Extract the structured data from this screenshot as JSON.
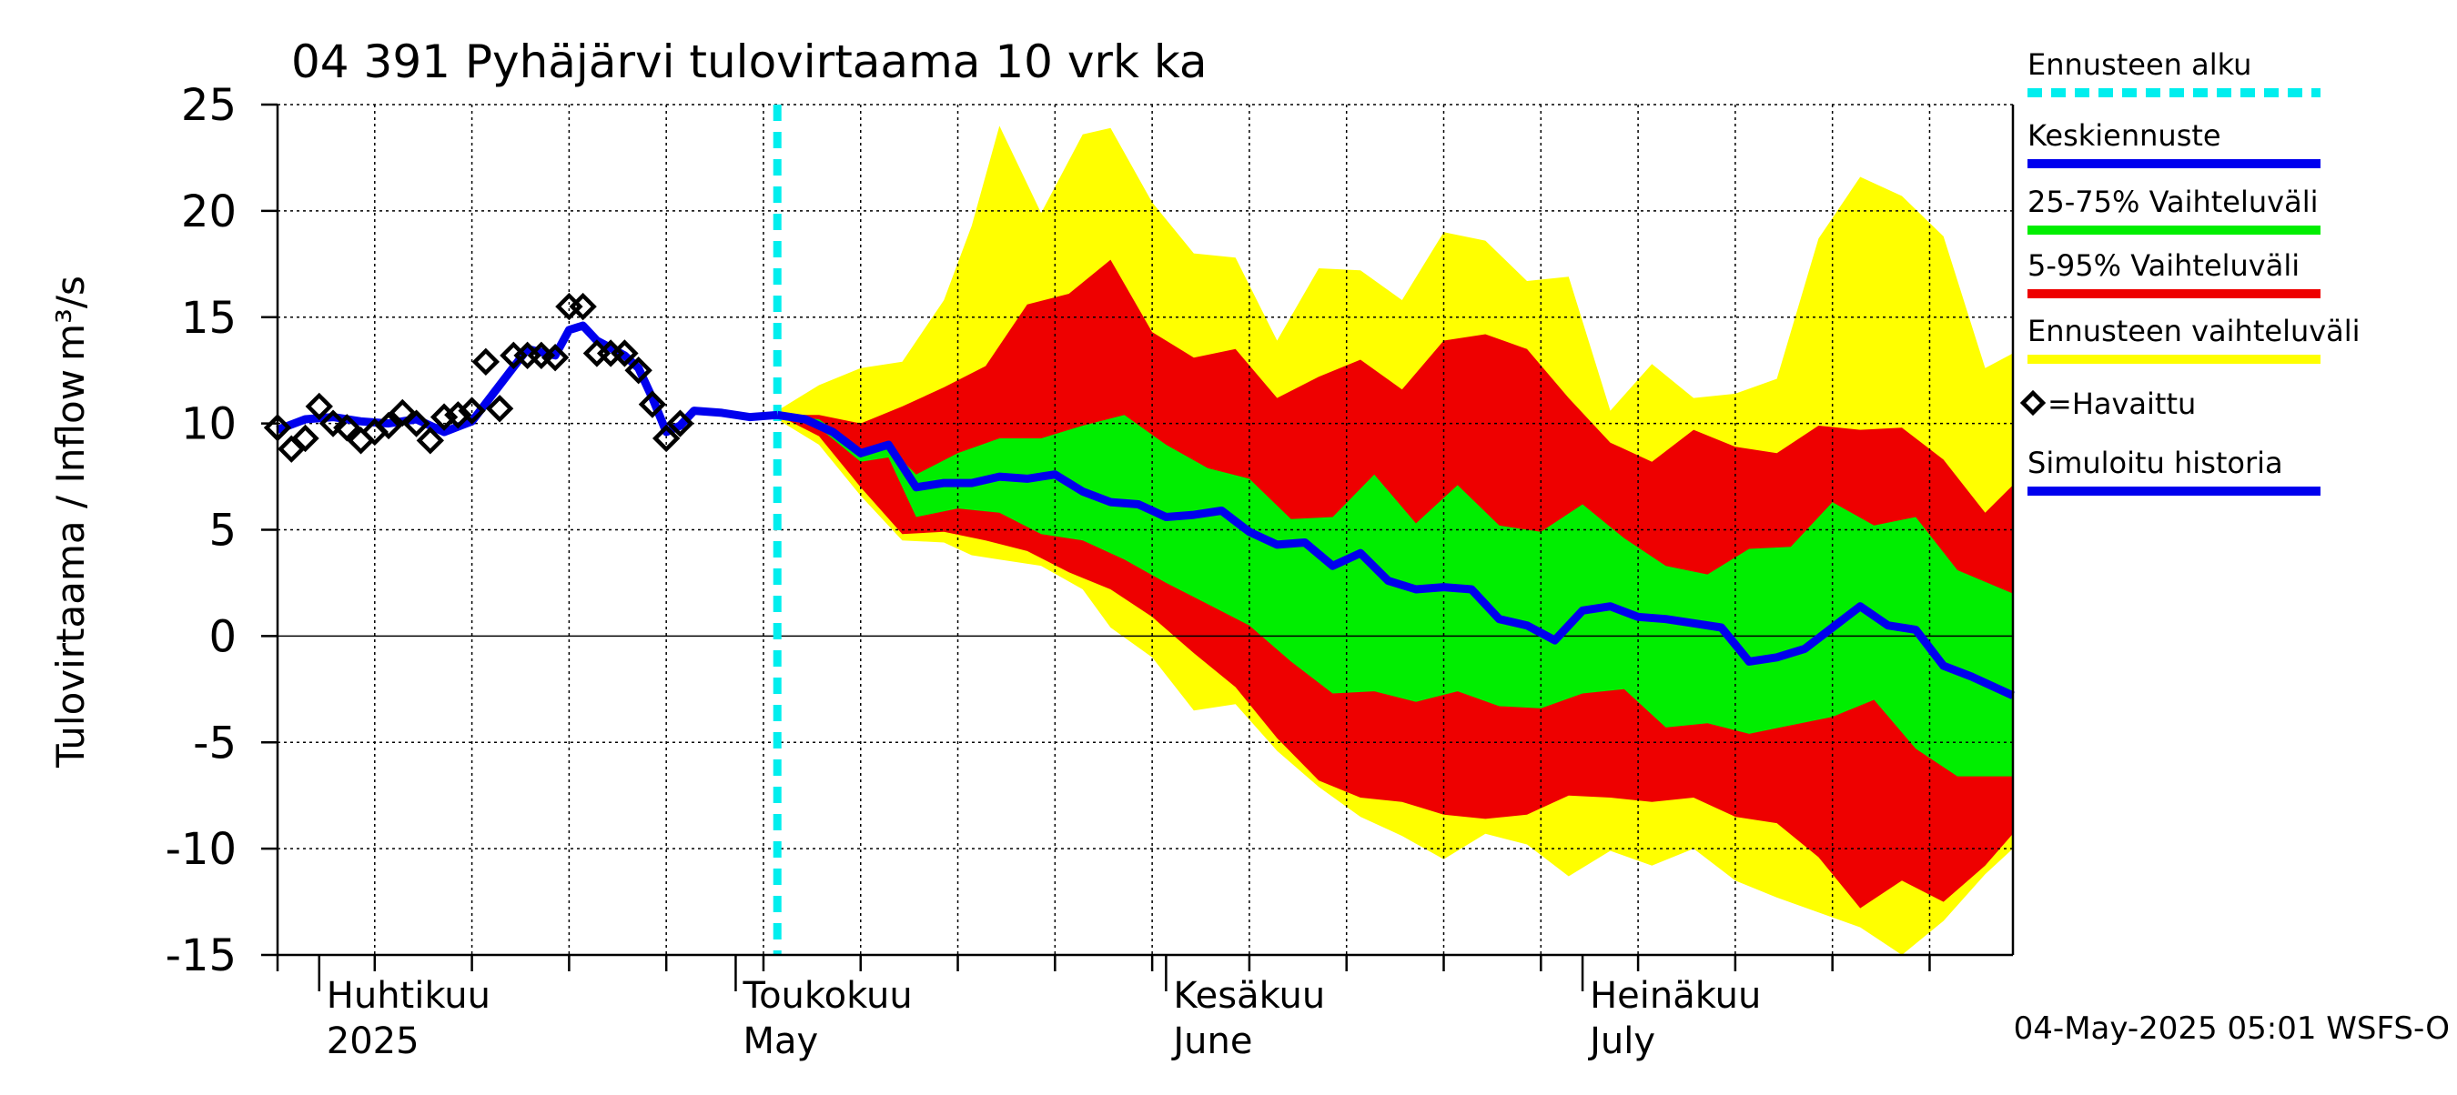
{
  "chart_data": {
    "type": "area",
    "title": "04 391 Pyhäjärvi tulovirtaama 10 vrk ka",
    "ylabel_fi": "Tulovirtaama / Inflow",
    "ylabel_unit": "m³/s",
    "ylim": [
      -15,
      25
    ],
    "yticks": [
      -15,
      -10,
      -5,
      0,
      5,
      10,
      15,
      20,
      25
    ],
    "x_start": "2025-03-29",
    "x_end": "2025-08-01",
    "forecast_start": "2025-05-04",
    "month_labels": [
      {
        "date": "2025-04-01",
        "fi": "Huhtikuu",
        "en": "2025"
      },
      {
        "date": "2025-05-01",
        "fi": "Toukokuu",
        "en": "May"
      },
      {
        "date": "2025-06-01",
        "fi": "Kesäkuu",
        "en": "June"
      },
      {
        "date": "2025-07-01",
        "fi": "Heinäkuu",
        "en": "July"
      }
    ],
    "legend": [
      {
        "label": "Ennusteen alku",
        "color": "#00eeee",
        "style": "dashed"
      },
      {
        "label": "Keskiennuste",
        "color": "#0000ee",
        "style": "line"
      },
      {
        "label": "25-75% Vaihteluväli",
        "color": "#00ee00",
        "style": "line"
      },
      {
        "label": "5-95% Vaihteluväli",
        "color": "#ee0000",
        "style": "line"
      },
      {
        "label": "Ennusteen vaihteluväli",
        "color": "#ffff00",
        "style": "line"
      },
      {
        "label": "=Havaittu",
        "color": "#000000",
        "style": "marker"
      },
      {
        "label": "Simuloitu historia",
        "color": "#0000ee",
        "style": "line"
      }
    ],
    "footer": "04-May-2025 05:01 WSFS-O",
    "colors": {
      "full_band": "#ffff00",
      "p5_95_band": "#ee0000",
      "p25_75_band": "#00ee00",
      "median": "#0000ee",
      "forecast_start": "#00eeee",
      "observed": "#000000"
    },
    "observed": [
      [
        "2025-03-29",
        9.8
      ],
      [
        "2025-03-30",
        8.8
      ],
      [
        "2025-03-31",
        9.3
      ],
      [
        "2025-04-01",
        10.8
      ],
      [
        "2025-04-02",
        10.0
      ],
      [
        "2025-04-03",
        9.8
      ],
      [
        "2025-04-04",
        9.2
      ],
      [
        "2025-04-05",
        9.6
      ],
      [
        "2025-04-06",
        9.9
      ],
      [
        "2025-04-07",
        10.5
      ],
      [
        "2025-04-08",
        10.0
      ],
      [
        "2025-04-09",
        9.2
      ],
      [
        "2025-04-10",
        10.3
      ],
      [
        "2025-04-11",
        10.4
      ],
      [
        "2025-04-12",
        10.6
      ],
      [
        "2025-04-13",
        12.9
      ],
      [
        "2025-04-14",
        10.7
      ],
      [
        "2025-04-15",
        13.2
      ],
      [
        "2025-04-16",
        13.2
      ],
      [
        "2025-04-17",
        13.2
      ],
      [
        "2025-04-18",
        13.1
      ],
      [
        "2025-04-19",
        15.5
      ],
      [
        "2025-04-20",
        15.5
      ],
      [
        "2025-04-21",
        13.3
      ],
      [
        "2025-04-22",
        13.3
      ],
      [
        "2025-04-23",
        13.3
      ],
      [
        "2025-04-24",
        12.5
      ],
      [
        "2025-04-25",
        10.9
      ],
      [
        "2025-04-26",
        9.3
      ],
      [
        "2025-04-27",
        10.0
      ]
    ],
    "simulated_history": [
      [
        "2025-03-29",
        9.7
      ],
      [
        "2025-03-31",
        10.2
      ],
      [
        "2025-04-02",
        10.3
      ],
      [
        "2025-04-04",
        10.1
      ],
      [
        "2025-04-06",
        10.0
      ],
      [
        "2025-04-08",
        10.2
      ],
      [
        "2025-04-10",
        9.6
      ],
      [
        "2025-04-12",
        10.1
      ],
      [
        "2025-04-14",
        11.8
      ],
      [
        "2025-04-16",
        13.5
      ],
      [
        "2025-04-18",
        13.2
      ],
      [
        "2025-04-19",
        14.4
      ],
      [
        "2025-04-20",
        14.6
      ],
      [
        "2025-04-21",
        13.9
      ],
      [
        "2025-04-23",
        13.2
      ],
      [
        "2025-04-24",
        12.6
      ],
      [
        "2025-04-25",
        11.2
      ],
      [
        "2025-04-26",
        9.6
      ],
      [
        "2025-04-27",
        9.9
      ],
      [
        "2025-04-28",
        10.6
      ],
      [
        "2025-04-30",
        10.5
      ],
      [
        "2025-05-02",
        10.3
      ],
      [
        "2025-05-04",
        10.4
      ]
    ],
    "median": [
      [
        "2025-05-04",
        10.4
      ],
      [
        "2025-05-06",
        10.2
      ],
      [
        "2025-05-08",
        9.6
      ],
      [
        "2025-05-10",
        8.6
      ],
      [
        "2025-05-12",
        9.0
      ],
      [
        "2025-05-14",
        7.0
      ],
      [
        "2025-05-16",
        7.2
      ],
      [
        "2025-05-18",
        7.2
      ],
      [
        "2025-05-20",
        7.5
      ],
      [
        "2025-05-22",
        7.4
      ],
      [
        "2025-05-24",
        7.6
      ],
      [
        "2025-05-26",
        6.8
      ],
      [
        "2025-05-28",
        6.3
      ],
      [
        "2025-05-30",
        6.2
      ],
      [
        "2025-06-01",
        5.6
      ],
      [
        "2025-06-03",
        5.7
      ],
      [
        "2025-06-05",
        5.9
      ],
      [
        "2025-06-07",
        4.9
      ],
      [
        "2025-06-09",
        4.3
      ],
      [
        "2025-06-11",
        4.4
      ],
      [
        "2025-06-13",
        3.3
      ],
      [
        "2025-06-15",
        3.9
      ],
      [
        "2025-06-17",
        2.6
      ],
      [
        "2025-06-19",
        2.2
      ],
      [
        "2025-06-21",
        2.3
      ],
      [
        "2025-06-23",
        2.2
      ],
      [
        "2025-06-25",
        0.8
      ],
      [
        "2025-06-27",
        0.5
      ],
      [
        "2025-06-29",
        -0.2
      ],
      [
        "2025-07-01",
        1.2
      ],
      [
        "2025-07-03",
        1.4
      ],
      [
        "2025-07-05",
        0.9
      ],
      [
        "2025-07-07",
        0.8
      ],
      [
        "2025-07-09",
        0.6
      ],
      [
        "2025-07-11",
        0.4
      ],
      [
        "2025-07-13",
        -1.2
      ],
      [
        "2025-07-15",
        -1.0
      ],
      [
        "2025-07-17",
        -0.6
      ],
      [
        "2025-07-19",
        0.4
      ],
      [
        "2025-07-21",
        1.4
      ],
      [
        "2025-07-23",
        0.5
      ],
      [
        "2025-07-25",
        0.3
      ],
      [
        "2025-07-27",
        -1.4
      ],
      [
        "2025-07-29",
        -1.9
      ],
      [
        "2025-08-01",
        -2.8
      ]
    ],
    "band_25_75": [
      [
        "2025-05-04",
        10.4,
        10.4
      ],
      [
        "2025-05-07",
        10.2,
        9.8
      ],
      [
        "2025-05-10",
        8.8,
        8.2
      ],
      [
        "2025-05-12",
        8.9,
        8.4
      ],
      [
        "2025-05-14",
        7.6,
        5.6
      ],
      [
        "2025-05-17",
        8.6,
        6.0
      ],
      [
        "2025-05-20",
        9.3,
        5.8
      ],
      [
        "2025-05-23",
        9.3,
        4.8
      ],
      [
        "2025-05-26",
        9.9,
        4.5
      ],
      [
        "2025-05-29",
        10.4,
        3.6
      ],
      [
        "2025-06-01",
        9.0,
        2.5
      ],
      [
        "2025-06-04",
        7.9,
        1.5
      ],
      [
        "2025-06-07",
        7.4,
        0.5
      ],
      [
        "2025-06-10",
        5.5,
        -1.2
      ],
      [
        "2025-06-13",
        5.6,
        -2.7
      ],
      [
        "2025-06-16",
        7.6,
        -2.6
      ],
      [
        "2025-06-19",
        5.3,
        -3.1
      ],
      [
        "2025-06-22",
        7.1,
        -2.6
      ],
      [
        "2025-06-25",
        5.2,
        -3.3
      ],
      [
        "2025-06-28",
        4.9,
        -3.4
      ],
      [
        "2025-07-01",
        6.2,
        -2.7
      ],
      [
        "2025-07-04",
        4.6,
        -2.5
      ],
      [
        "2025-07-07",
        3.3,
        -4.3
      ],
      [
        "2025-07-10",
        2.9,
        -4.1
      ],
      [
        "2025-07-13",
        4.1,
        -4.6
      ],
      [
        "2025-07-16",
        4.2,
        -4.2
      ],
      [
        "2025-07-19",
        6.3,
        -3.8
      ],
      [
        "2025-07-22",
        5.2,
        -3.0
      ],
      [
        "2025-07-25",
        5.6,
        -5.3
      ],
      [
        "2025-07-28",
        3.1,
        -6.6
      ],
      [
        "2025-08-01",
        2.0,
        -6.6
      ]
    ],
    "band_5_95": [
      [
        "2025-05-04",
        10.4,
        10.4
      ],
      [
        "2025-05-07",
        10.4,
        9.4
      ],
      [
        "2025-05-10",
        10.0,
        7.0
      ],
      [
        "2025-05-13",
        10.8,
        4.8
      ],
      [
        "2025-05-16",
        11.7,
        4.9
      ],
      [
        "2025-05-19",
        12.7,
        4.5
      ],
      [
        "2025-05-22",
        15.6,
        4.0
      ],
      [
        "2025-05-25",
        16.1,
        3.0
      ],
      [
        "2025-05-28",
        17.7,
        2.2
      ],
      [
        "2025-05-31",
        14.3,
        0.9
      ],
      [
        "2025-06-03",
        13.1,
        -0.8
      ],
      [
        "2025-06-06",
        13.5,
        -2.4
      ],
      [
        "2025-06-09",
        11.2,
        -4.8
      ],
      [
        "2025-06-12",
        12.2,
        -6.8
      ],
      [
        "2025-06-15",
        13.0,
        -7.6
      ],
      [
        "2025-06-18",
        11.6,
        -7.8
      ],
      [
        "2025-06-21",
        13.9,
        -8.4
      ],
      [
        "2025-06-24",
        14.2,
        -8.6
      ],
      [
        "2025-06-27",
        13.5,
        -8.4
      ],
      [
        "2025-06-30",
        11.2,
        -7.5
      ],
      [
        "2025-07-03",
        9.1,
        -7.6
      ],
      [
        "2025-07-06",
        8.2,
        -7.8
      ],
      [
        "2025-07-09",
        9.7,
        -7.6
      ],
      [
        "2025-07-12",
        8.9,
        -8.5
      ],
      [
        "2025-07-15",
        8.6,
        -8.8
      ],
      [
        "2025-07-18",
        9.9,
        -10.4
      ],
      [
        "2025-07-21",
        9.7,
        -12.8
      ],
      [
        "2025-07-24",
        9.8,
        -11.5
      ],
      [
        "2025-07-27",
        8.3,
        -12.5
      ],
      [
        "2025-07-30",
        5.8,
        -10.8
      ],
      [
        "2025-08-01",
        7.1,
        -9.3
      ]
    ],
    "band_full": [
      [
        "2025-05-04",
        10.6,
        10.2
      ],
      [
        "2025-05-07",
        11.8,
        9.0
      ],
      [
        "2025-05-10",
        12.6,
        6.6
      ],
      [
        "2025-05-13",
        12.9,
        4.5
      ],
      [
        "2025-05-16",
        15.8,
        4.4
      ],
      [
        "2025-05-18",
        19.3,
        3.8
      ],
      [
        "2025-05-20",
        24.0,
        3.6
      ],
      [
        "2025-05-23",
        19.9,
        3.3
      ],
      [
        "2025-05-26",
        23.6,
        2.2
      ],
      [
        "2025-05-28",
        23.9,
        0.4
      ],
      [
        "2025-05-31",
        20.4,
        -1.0
      ],
      [
        "2025-06-03",
        18.0,
        -3.5
      ],
      [
        "2025-06-06",
        17.8,
        -3.2
      ],
      [
        "2025-06-09",
        13.9,
        -5.4
      ],
      [
        "2025-06-12",
        17.3,
        -7.1
      ],
      [
        "2025-06-15",
        17.2,
        -8.5
      ],
      [
        "2025-06-18",
        15.8,
        -9.4
      ],
      [
        "2025-06-21",
        19.0,
        -10.5
      ],
      [
        "2025-06-24",
        18.6,
        -9.3
      ],
      [
        "2025-06-27",
        16.7,
        -9.8
      ],
      [
        "2025-06-30",
        16.9,
        -11.3
      ],
      [
        "2025-07-03",
        10.6,
        -10.1
      ],
      [
        "2025-07-06",
        12.8,
        -10.8
      ],
      [
        "2025-07-09",
        11.2,
        -10.0
      ],
      [
        "2025-07-12",
        11.4,
        -11.5
      ],
      [
        "2025-07-15",
        12.1,
        -12.3
      ],
      [
        "2025-07-18",
        18.7,
        -13.0
      ],
      [
        "2025-07-21",
        21.6,
        -13.7
      ],
      [
        "2025-07-24",
        20.7,
        -15.0
      ],
      [
        "2025-07-27",
        18.8,
        -13.4
      ],
      [
        "2025-07-30",
        12.6,
        -11.2
      ],
      [
        "2025-08-01",
        13.3,
        -10.0
      ]
    ]
  }
}
